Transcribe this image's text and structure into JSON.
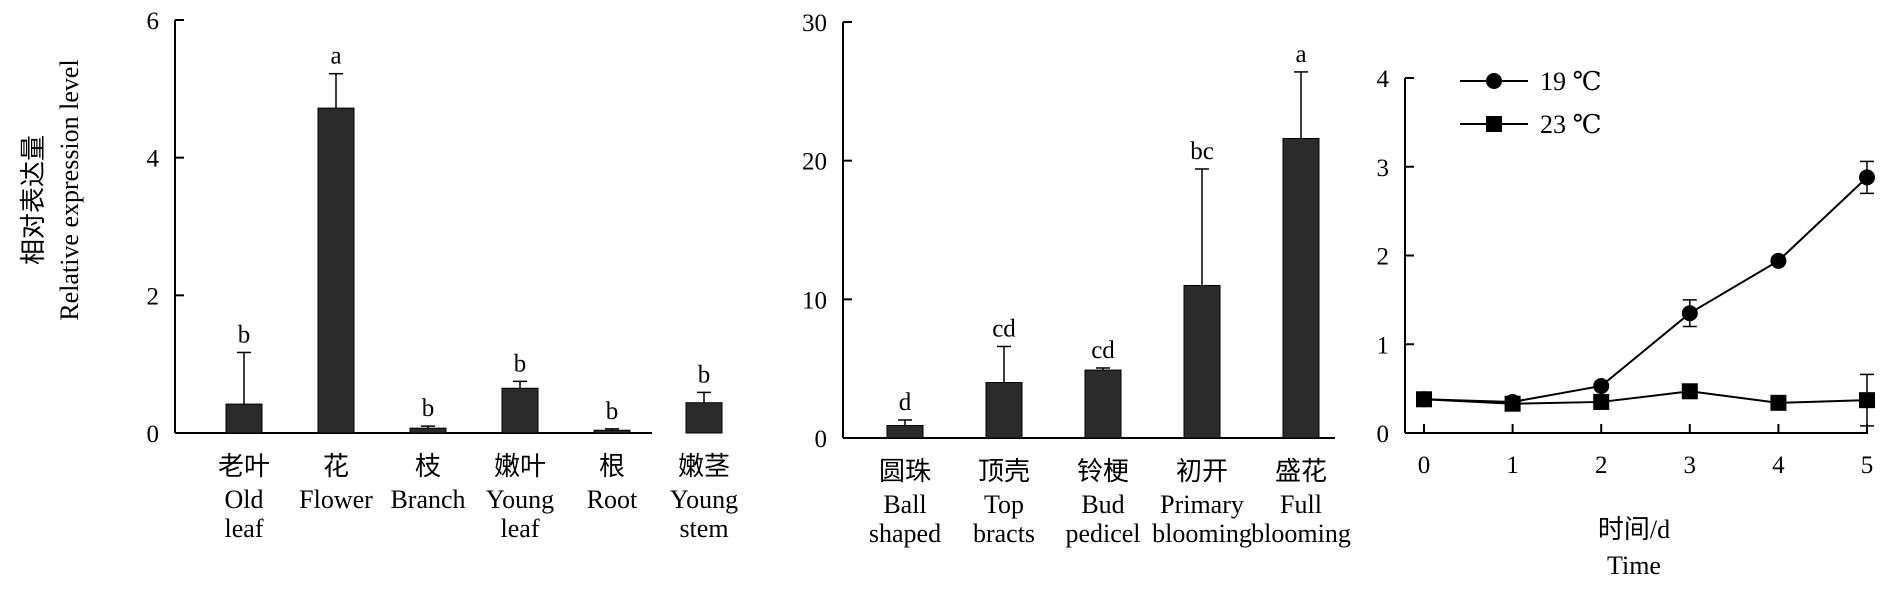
{
  "colors": {
    "bar": "#2b2b2b",
    "axis": "#000000",
    "line": "#000000"
  },
  "ylabel": {
    "zh": "相对表达量",
    "en": "Relative expression level"
  },
  "chart_data": [
    {
      "type": "bar",
      "ylim": [
        0,
        6
      ],
      "yticks": [
        "0",
        "2",
        "4",
        "6"
      ],
      "categories": [
        {
          "zh": "老叶",
          "en": [
            "Old",
            "leaf"
          ]
        },
        {
          "zh": "花",
          "en": [
            "Flower"
          ]
        },
        {
          "zh": "枝",
          "en": [
            "Branch"
          ]
        },
        {
          "zh": "嫩叶",
          "en": [
            "Young",
            "leaf"
          ]
        },
        {
          "zh": "根",
          "en": [
            "Root"
          ]
        },
        {
          "zh": "嫩茎",
          "en": [
            "Young",
            "stem"
          ]
        }
      ],
      "values": [
        0.42,
        4.72,
        0.07,
        0.65,
        0.04,
        0.44
      ],
      "errors": [
        0.75,
        0.5,
        0.03,
        0.1,
        0.02,
        0.15
      ],
      "significance": [
        "b",
        "a",
        "b",
        "b",
        "b",
        "b"
      ],
      "grid": false
    },
    {
      "type": "bar",
      "ylim": [
        0,
        30
      ],
      "yticks": [
        "0",
        "10",
        "20",
        "30"
      ],
      "categories": [
        {
          "zh": "圆珠",
          "en": [
            "Ball",
            "shaped"
          ]
        },
        {
          "zh": "顶壳",
          "en": [
            "Top",
            "bracts"
          ]
        },
        {
          "zh": "铃梗",
          "en": [
            "Bud",
            "pedicel"
          ]
        },
        {
          "zh": "初开",
          "en": [
            "Primary",
            "blooming"
          ]
        },
        {
          "zh": "盛花",
          "en": [
            "Full",
            "blooming"
          ]
        }
      ],
      "values": [
        0.9,
        4.0,
        4.9,
        11.0,
        21.6
      ],
      "errors": [
        0.4,
        2.6,
        0.15,
        8.4,
        4.8
      ],
      "significance": [
        "d",
        "cd",
        "cd",
        "bc",
        "a"
      ],
      "grid": false
    },
    {
      "type": "line",
      "xlim": [
        0,
        5
      ],
      "ylim": [
        0,
        4
      ],
      "xticks": [
        "0",
        "1",
        "2",
        "3",
        "4",
        "5"
      ],
      "yticks": [
        "0",
        "1",
        "2",
        "3",
        "4"
      ],
      "xlabel": {
        "zh": "时间/d",
        "en": "Time"
      },
      "legend_position": "top-left",
      "x": [
        0,
        1,
        2,
        3,
        4,
        5
      ],
      "series": [
        {
          "name": "19 ℃",
          "marker": "circle",
          "values": [
            0.38,
            0.35,
            0.53,
            1.35,
            1.94,
            2.88
          ],
          "errors": [
            0.0,
            0.0,
            0.0,
            0.15,
            0.03,
            0.18
          ]
        },
        {
          "name": "23 ℃",
          "marker": "square",
          "values": [
            0.38,
            0.33,
            0.35,
            0.47,
            0.34,
            0.37
          ],
          "errors": [
            0.0,
            0.0,
            0.0,
            0.0,
            0.0,
            0.29
          ]
        }
      ],
      "grid": false
    }
  ]
}
